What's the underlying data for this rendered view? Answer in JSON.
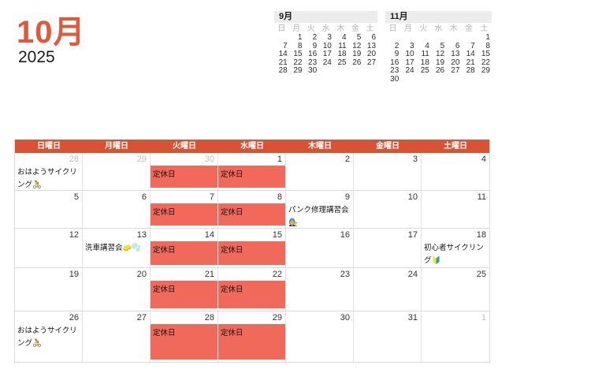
{
  "title": {
    "month": "10月",
    "year": "2025"
  },
  "colors": {
    "title_accent": "#E2583A",
    "main_header_bg": "#D95233",
    "main_header_text": "#FFFFFF",
    "closed_block_bg": "#F1695B",
    "mini_header_bg": "#ECECEC",
    "grid_line": "#DBDBDB",
    "date_text": "#333333",
    "date_text_outside": "#C2C2C2",
    "mini_weekday_text": "#B5B5B5"
  },
  "mini_calendars": [
    {
      "id": "september",
      "title": "9月",
      "weekdays": [
        "日",
        "月",
        "火",
        "水",
        "木",
        "金",
        "土"
      ],
      "weeks": [
        [
          "",
          "1",
          "2",
          "3",
          "4",
          "5",
          "6"
        ],
        [
          "7",
          "8",
          "9",
          "10",
          "11",
          "12",
          "13"
        ],
        [
          "14",
          "15",
          "16",
          "17",
          "18",
          "19",
          "20"
        ],
        [
          "21",
          "22",
          "23",
          "24",
          "25",
          "26",
          "27"
        ],
        [
          "28",
          "29",
          "30",
          "",
          "",
          "",
          ""
        ]
      ]
    },
    {
      "id": "november",
      "title": "11月",
      "weekdays": [
        "日",
        "月",
        "火",
        "水",
        "木",
        "金",
        "土"
      ],
      "weeks": [
        [
          "",
          "",
          "",
          "",
          "",
          "",
          "1"
        ],
        [
          "2",
          "3",
          "4",
          "5",
          "6",
          "7",
          "8"
        ],
        [
          "9",
          "10",
          "11",
          "12",
          "13",
          "14",
          "15"
        ],
        [
          "16",
          "17",
          "18",
          "19",
          "20",
          "21",
          "22"
        ],
        [
          "23",
          "24",
          "25",
          "26",
          "27",
          "28",
          "29"
        ],
        [
          "30",
          "",
          "",
          "",
          "",
          "",
          ""
        ]
      ]
    }
  ],
  "main_calendar": {
    "weekday_headers": [
      "日曜日",
      "月曜日",
      "火曜日",
      "水曜日",
      "木曜日",
      "金曜日",
      "土曜日"
    ],
    "closed_day_label": "定休日",
    "weeks": [
      {
        "days": [
          {
            "date": "28",
            "outside": true,
            "events": [
              {
                "style": "text",
                "title": "おはようサイクリング🚴"
              }
            ]
          },
          {
            "date": "29",
            "outside": true,
            "events": []
          },
          {
            "date": "30",
            "outside": true,
            "events": [
              {
                "style": "block",
                "title": "定休日"
              }
            ]
          },
          {
            "date": "1",
            "outside": false,
            "events": [
              {
                "style": "block",
                "title": "定休日"
              }
            ]
          },
          {
            "date": "2",
            "outside": false,
            "events": []
          },
          {
            "date": "3",
            "outside": false,
            "events": []
          },
          {
            "date": "4",
            "outside": false,
            "events": []
          }
        ]
      },
      {
        "days": [
          {
            "date": "5",
            "outside": false,
            "events": []
          },
          {
            "date": "6",
            "outside": false,
            "events": []
          },
          {
            "date": "7",
            "outside": false,
            "events": [
              {
                "style": "block",
                "title": "定休日"
              }
            ]
          },
          {
            "date": "8",
            "outside": false,
            "events": [
              {
                "style": "block",
                "title": "定休日"
              }
            ]
          },
          {
            "date": "9",
            "outside": false,
            "events": [
              {
                "style": "text",
                "title": "パンク修理講習会 🧑‍🔧"
              }
            ]
          },
          {
            "date": "10",
            "outside": false,
            "events": []
          },
          {
            "date": "11",
            "outside": false,
            "events": []
          }
        ]
      },
      {
        "days": [
          {
            "date": "12",
            "outside": false,
            "events": []
          },
          {
            "date": "13",
            "outside": false,
            "events": [
              {
                "style": "text",
                "title": "洗車講習会🧽🫧"
              }
            ]
          },
          {
            "date": "14",
            "outside": false,
            "events": [
              {
                "style": "block",
                "title": "定休日"
              }
            ]
          },
          {
            "date": "15",
            "outside": false,
            "events": [
              {
                "style": "block",
                "title": "定休日"
              }
            ]
          },
          {
            "date": "16",
            "outside": false,
            "events": []
          },
          {
            "date": "17",
            "outside": false,
            "events": []
          },
          {
            "date": "18",
            "outside": false,
            "events": [
              {
                "style": "text",
                "title": "初心者サイクリング🔰"
              }
            ]
          }
        ]
      },
      {
        "days": [
          {
            "date": "19",
            "outside": false,
            "events": []
          },
          {
            "date": "20",
            "outside": false,
            "events": []
          },
          {
            "date": "21",
            "outside": false,
            "events": [
              {
                "style": "block",
                "title": "定休日"
              }
            ]
          },
          {
            "date": "22",
            "outside": false,
            "events": [
              {
                "style": "block",
                "title": "定休日"
              }
            ]
          },
          {
            "date": "23",
            "outside": false,
            "events": []
          },
          {
            "date": "24",
            "outside": false,
            "events": []
          },
          {
            "date": "25",
            "outside": false,
            "events": []
          }
        ]
      },
      {
        "days": [
          {
            "date": "26",
            "outside": false,
            "events": [
              {
                "style": "text",
                "title": "おはようサイクリング🚴"
              }
            ]
          },
          {
            "date": "27",
            "outside": false,
            "events": []
          },
          {
            "date": "28",
            "outside": false,
            "events": [
              {
                "style": "block",
                "title": "定休日"
              }
            ]
          },
          {
            "date": "29",
            "outside": false,
            "events": [
              {
                "style": "block",
                "title": "定休日"
              }
            ]
          },
          {
            "date": "30",
            "outside": false,
            "events": []
          },
          {
            "date": "31",
            "outside": false,
            "events": []
          },
          {
            "date": "1",
            "outside": true,
            "events": []
          }
        ]
      }
    ]
  }
}
